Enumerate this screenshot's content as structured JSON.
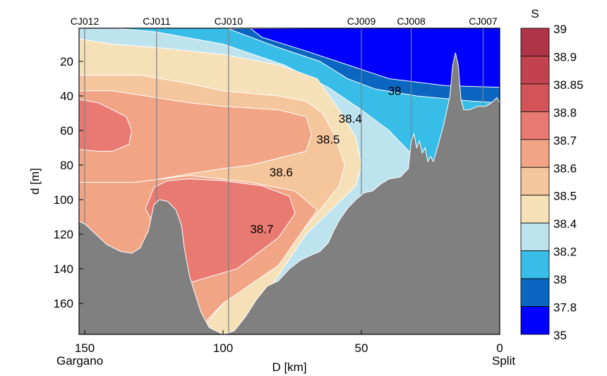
{
  "chart_data": {
    "type": "contour-section",
    "title": "",
    "xlabel": "D [km]",
    "ylabel": "d [m]",
    "xlim": [
      0,
      152
    ],
    "ylim": [
      0,
      178
    ],
    "x_reversed": true,
    "y_reversed": true,
    "x_ticks": [
      150,
      100,
      50,
      0
    ],
    "y_ticks": [
      20,
      40,
      60,
      80,
      100,
      120,
      140,
      160
    ],
    "x_end_labels": {
      "left": "Gargano",
      "right": "Split"
    },
    "stations": [
      {
        "name": "CJ012",
        "x": 150
      },
      {
        "name": "CJ011",
        "x": 124
      },
      {
        "name": "CJ010",
        "x": 98
      },
      {
        "name": "CJ009",
        "x": 50
      },
      {
        "name": "CJ008",
        "x": 32
      },
      {
        "name": "CJ007",
        "x": 6
      }
    ],
    "contour_labels": [
      {
        "text": "38",
        "x": 38,
        "d": 37
      },
      {
        "text": "38.4",
        "x": 54,
        "d": 53
      },
      {
        "text": "38.5",
        "x": 62,
        "d": 65
      },
      {
        "text": "38.6",
        "x": 79,
        "d": 84
      },
      {
        "text": "38.7",
        "x": 86,
        "d": 117
      }
    ],
    "colorbar": {
      "title": "S",
      "levels": [
        "39",
        "38.9",
        "38.85",
        "38.8",
        "38.7",
        "38.6",
        "38.5",
        "38.4",
        "38.2",
        "38",
        "37.8",
        "35"
      ],
      "colors": [
        "#b03448",
        "#c2434f",
        "#d35458",
        "#e87a72",
        "#f2a585",
        "#f5c59b",
        "#f6e0b8",
        "#bde3ee",
        "#38bde8",
        "#0a66c0",
        "#0000ff"
      ]
    },
    "seabed_color": "#808080",
    "station_line_color": "#808080"
  }
}
